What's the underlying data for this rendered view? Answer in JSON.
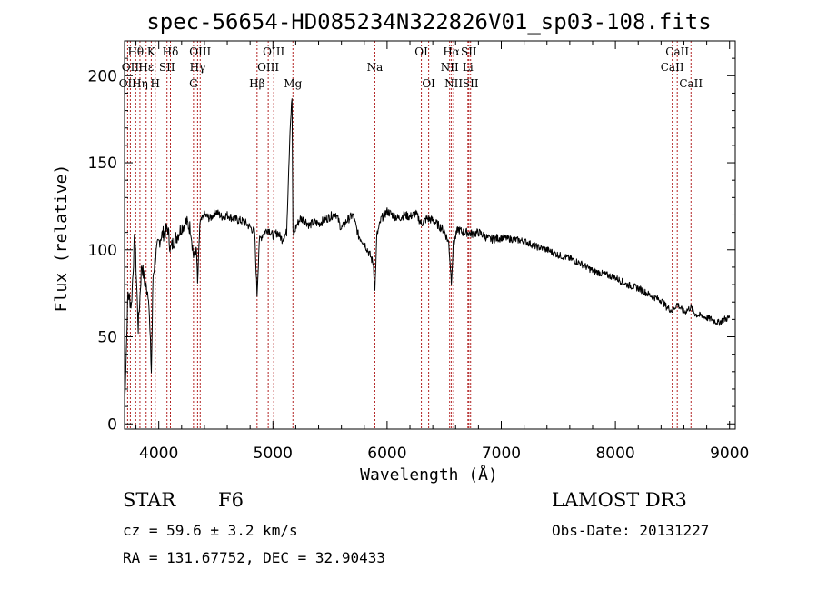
{
  "info": {
    "class_label": "STAR",
    "subclass": "F6",
    "survey": "LAMOST DR3",
    "cz": "cz = 59.6 ± 3.2 km/s",
    "obs_date": "Obs-Date: 20131227",
    "coords": "RA = 131.67752, DEC =  32.90433"
  },
  "chart_data": {
    "type": "line",
    "title": "spec-56654-HD085234N322826V01_sp03-108.fits",
    "xlabel": "Wavelength (Å)",
    "ylabel": "Flux (relative)",
    "xlim": [
      3700,
      9050
    ],
    "ylim": [
      -3,
      220
    ],
    "xticks": [
      4000,
      5000,
      6000,
      7000,
      8000,
      9000
    ],
    "yticks": [
      0,
      50,
      100,
      150,
      200
    ],
    "grid": false,
    "line_color": "#000000",
    "marker_color": "#b22222",
    "spectral_lines": [
      {
        "label": "OII",
        "wavelength": 3727,
        "row": 2
      },
      {
        "label": "Hθ",
        "wavelength": 3798,
        "row": 0
      },
      {
        "label": "OII",
        "wavelength": 3751,
        "row": 1
      },
      {
        "label": "Hη",
        "wavelength": 3835,
        "row": 2
      },
      {
        "label": "Hε",
        "wavelength": 3889,
        "row": 1
      },
      {
        "label": "K",
        "wavelength": 3934,
        "row": 0
      },
      {
        "label": "H",
        "wavelength": 3969,
        "row": 2
      },
      {
        "label": "SII",
        "wavelength": 4072,
        "row": 1
      },
      {
        "label": "Hδ",
        "wavelength": 4102,
        "row": 0
      },
      {
        "label": "OIII",
        "wavelength": 4363,
        "row": 0
      },
      {
        "label": "Hγ",
        "wavelength": 4340,
        "row": 1
      },
      {
        "label": "G",
        "wavelength": 4304,
        "row": 2
      },
      {
        "label": "Hβ",
        "wavelength": 4861,
        "row": 2
      },
      {
        "label": "OIII",
        "wavelength": 5007,
        "row": 0
      },
      {
        "label": "OIII",
        "wavelength": 4959,
        "row": 1
      },
      {
        "label": "Mg",
        "wavelength": 5175,
        "row": 2
      },
      {
        "label": "Na",
        "wavelength": 5893,
        "row": 1
      },
      {
        "label": "OI",
        "wavelength": 6300,
        "row": 0
      },
      {
        "label": "OI",
        "wavelength": 6364,
        "row": 2
      },
      {
        "label": "Hα",
        "wavelength": 6563,
        "row": 0
      },
      {
        "label": "NII",
        "wavelength": 6548,
        "row": 1
      },
      {
        "label": "NII",
        "wavelength": 6583,
        "row": 2
      },
      {
        "label": "SII",
        "wavelength": 6716,
        "row": 0
      },
      {
        "label": "Li",
        "wavelength": 6708,
        "row": 1
      },
      {
        "label": "SII",
        "wavelength": 6731,
        "row": 2
      },
      {
        "label": "CaII",
        "wavelength": 8542,
        "row": 0
      },
      {
        "label": "CaII",
        "wavelength": 8498,
        "row": 1
      },
      {
        "label": "CaII",
        "wavelength": 8662,
        "row": 2
      }
    ],
    "spectrum": {
      "x": [
        3700,
        3730,
        3760,
        3790,
        3820,
        3850,
        3880,
        3910,
        3935,
        3950,
        3969,
        3990,
        4020,
        4050,
        4080,
        4102,
        4130,
        4160,
        4200,
        4240,
        4280,
        4304,
        4330,
        4340,
        4360,
        4400,
        4450,
        4500,
        4550,
        4600,
        4650,
        4700,
        4750,
        4800,
        4840,
        4861,
        4880,
        4920,
        4960,
        5000,
        5040,
        5080,
        5120,
        5150,
        5167,
        5175,
        5183,
        5200,
        5240,
        5280,
        5320,
        5360,
        5400,
        5450,
        5500,
        5550,
        5600,
        5650,
        5700,
        5750,
        5800,
        5850,
        5880,
        5893,
        5910,
        5950,
        6000,
        6050,
        6100,
        6150,
        6200,
        6250,
        6300,
        6350,
        6400,
        6450,
        6500,
        6540,
        6563,
        6580,
        6620,
        6660,
        6700,
        6750,
        6800,
        6900,
        7000,
        7100,
        7200,
        7300,
        7400,
        7500,
        7600,
        7700,
        7800,
        7900,
        8000,
        8100,
        8200,
        8300,
        8400,
        8450,
        8498,
        8542,
        8600,
        8662,
        8700,
        8750,
        8800,
        8850,
        8900,
        8950,
        9000
      ],
      "y": [
        8,
        75,
        68,
        110,
        55,
        92,
        80,
        75,
        30,
        85,
        95,
        102,
        108,
        110,
        112,
        100,
        105,
        108,
        113,
        116,
        112,
        96,
        100,
        80,
        115,
        120,
        118,
        122,
        119,
        120,
        118,
        117,
        116,
        113,
        110,
        74,
        105,
        110,
        112,
        108,
        110,
        106,
        110,
        170,
        187,
        110,
        108,
        113,
        118,
        117,
        114,
        116,
        115,
        117,
        119,
        121,
        112,
        117,
        120,
        108,
        104,
        97,
        92,
        76,
        108,
        118,
        122,
        120,
        118,
        120,
        119,
        121,
        115,
        118,
        117,
        114,
        111,
        104,
        82,
        103,
        112,
        110,
        110,
        109,
        110,
        106,
        107,
        106,
        105,
        102,
        100,
        97,
        95,
        92,
        88,
        86,
        84,
        80,
        78,
        74,
        71,
        67,
        65,
        69,
        64,
        67,
        63,
        62,
        61,
        60,
        58,
        60,
        61
      ]
    }
  }
}
